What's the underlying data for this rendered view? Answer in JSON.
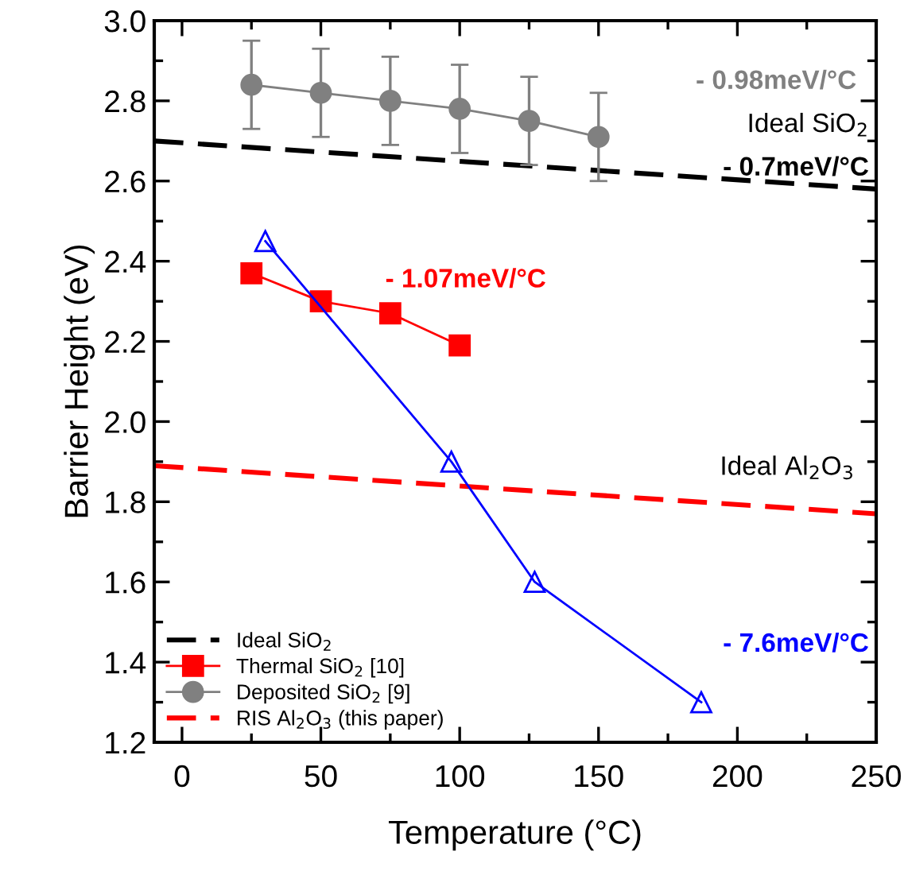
{
  "chart_data": {
    "type": "line",
    "xlabel": "Temperature (°C)",
    "ylabel": "Barrier Height (eV)",
    "xlim": [
      -10,
      250
    ],
    "ylim": [
      1.2,
      3.0
    ],
    "xticks": [
      0,
      50,
      100,
      150,
      200,
      250
    ],
    "yticks": [
      {
        "value": 1.2,
        "label": "1.2"
      },
      {
        "value": 1.4,
        "label": "1.4"
      },
      {
        "value": 1.6,
        "label": "1.6"
      },
      {
        "value": 1.8,
        "label": "1.8"
      },
      {
        "value": 2.0,
        "label": "2.0"
      },
      {
        "value": 2.2,
        "label": "2.2"
      },
      {
        "value": 2.4,
        "label": "2.4"
      },
      {
        "value": 2.6,
        "label": "2.6"
      },
      {
        "value": 2.8,
        "label": "2.8"
      },
      {
        "value": 3.0,
        "label": "3.0"
      }
    ],
    "legend": "bottom left",
    "grid": false,
    "series": [
      {
        "name": "Ideal SiO$_{2}$",
        "color": "#000000",
        "x": [
          -10,
          250
        ],
        "values": [
          2.7,
          2.58
        ],
        "line_style": "dashed",
        "marker": "none"
      },
      {
        "name": "Thermal SiO$_{2}$ [10]",
        "color": "#ff0000",
        "x": [
          25,
          50,
          75,
          100
        ],
        "values": [
          2.37,
          2.3,
          2.27,
          2.19
        ],
        "line_style": "solid",
        "marker": "square"
      },
      {
        "name": "Deposited SiO$_{2}$ [9]",
        "color": "#808080",
        "x": [
          25,
          50,
          75,
          100,
          125,
          150
        ],
        "values": [
          2.84,
          2.82,
          2.8,
          2.78,
          2.75,
          2.71
        ],
        "errors": [
          0.11,
          0.11,
          0.11,
          0.11,
          0.11,
          0.11
        ],
        "line_style": "solid",
        "marker": "circle"
      },
      {
        "name": "RIS Al$_{2}$O$_{3}$ (this paper)",
        "color": "#ff0000",
        "x": [
          -10,
          250
        ],
        "values": [
          1.89,
          1.77
        ],
        "line_style": "dashed",
        "marker": "none"
      },
      {
        "color": "#0000ff",
        "x": [
          30,
          97,
          127,
          187
        ],
        "values": [
          2.45,
          1.9,
          1.6,
          1.3
        ],
        "line_style": "solid",
        "marker": "triangle"
      }
    ],
    "annotations": [
      "- 0.98meV/°C",
      "Ideal SiO$_{2}$",
      "- 0.7meV/°C",
      "- 1.07meV/°C",
      "Ideal Al$_{2}$O$_{3}$",
      "- 7.6meV/°C"
    ]
  }
}
